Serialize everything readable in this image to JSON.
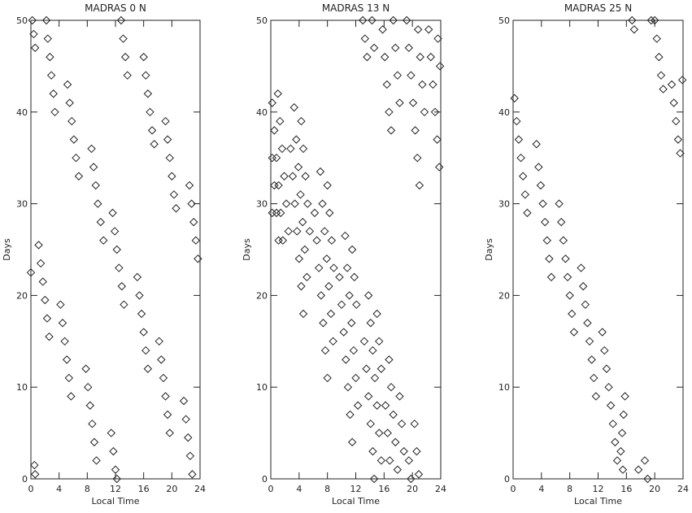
{
  "chart_data": [
    {
      "type": "scatter",
      "title": "MADRAS  0 N",
      "xlabel": "Local Time",
      "ylabel": "Days",
      "xlim": [
        0,
        24
      ],
      "xticks": [
        0,
        4,
        8,
        12,
        16,
        20,
        24
      ],
      "ylim": [
        0,
        50
      ],
      "yticks": [
        0,
        10,
        20,
        30,
        40,
        50
      ],
      "color": "#222222",
      "x": [
        0.2,
        0.4,
        0.6,
        2.2,
        2.4,
        2.7,
        2.9,
        3.2,
        3.4,
        5.2,
        5.5,
        5.8,
        6.1,
        6.4,
        6.8,
        8.6,
        8.9,
        9.2,
        9.5,
        9.9,
        10.3,
        11.6,
        11.9,
        12.2,
        12.5,
        12.9,
        13.2,
        15.1,
        15.4,
        15.7,
        16.0,
        16.3,
        16.6,
        18.2,
        18.5,
        18.8,
        19.1,
        19.4,
        19.7,
        21.7,
        22.0,
        22.3,
        22.6,
        22.9,
        12.8,
        13.1,
        13.4,
        13.7,
        16.0,
        16.3,
        16.6,
        16.9,
        17.2,
        17.5,
        19.1,
        19.4,
        19.7,
        20.0,
        20.3,
        20.6,
        22.5,
        22.8,
        23.1,
        23.4,
        23.7,
        1.1,
        1.4,
        1.7,
        2.0,
        2.3,
        2.6,
        4.2,
        4.5,
        4.8,
        5.1,
        5.4,
        5.7,
        7.8,
        8.1,
        8.4,
        8.7,
        9.0,
        9.3,
        11.4,
        11.7,
        12.0,
        12.2,
        0,
        0.5,
        0.6
      ],
      "values": [
        50,
        48.5,
        47,
        50,
        48,
        46,
        44,
        42,
        40,
        43,
        41,
        39,
        37,
        35,
        33,
        36,
        34,
        32,
        30,
        28,
        26,
        29,
        27,
        25,
        23,
        21,
        19,
        22,
        20,
        18,
        16,
        14,
        12,
        15,
        13,
        11,
        9,
        7,
        5,
        8.5,
        6.5,
        4.5,
        2.5,
        0.5,
        50,
        48,
        46,
        44,
        46,
        44,
        42,
        40,
        38,
        36.5,
        39,
        37,
        35,
        33,
        31,
        29.5,
        32,
        30,
        28,
        26,
        24,
        25.5,
        23.5,
        21.5,
        19.5,
        17.5,
        15.5,
        19,
        17,
        15,
        13,
        11,
        9,
        12,
        10,
        8,
        6,
        4,
        2,
        5,
        3,
        1,
        0,
        22.5,
        1.5,
        0.5
      ]
    },
    {
      "type": "scatter",
      "title": "MADRAS 13 N",
      "xlabel": "Local Time",
      "ylabel": "Days",
      "xlim": [
        0,
        24
      ],
      "xticks": [
        0,
        4,
        8,
        12,
        16,
        20,
        24
      ],
      "ylim": [
        0,
        50
      ],
      "yticks": [
        0,
        10,
        20,
        30,
        40,
        50
      ],
      "color": "#222222",
      "x": [
        0.2,
        0.5,
        0.8,
        1.1,
        1.4,
        1.7,
        1.0,
        1.3,
        1.6,
        1.9,
        2.2,
        2.5,
        0.2,
        0.5,
        0.8,
        1.1,
        0.2,
        3.3,
        3.6,
        3.9,
        4.2,
        4.5,
        4.8,
        5.1,
        2.8,
        3.1,
        3.4,
        3.7,
        4.0,
        4.3,
        4.6,
        4.3,
        4.6,
        4.9,
        5.2,
        5.5,
        7.0,
        7.3,
        7.6,
        7.9,
        8.2,
        8.5,
        8.8,
        6.2,
        6.5,
        6.8,
        7.1,
        7.4,
        7.7,
        8.0,
        8.0,
        8.3,
        8.6,
        8.9,
        10.5,
        10.8,
        11.1,
        11.4,
        11.7,
        12.0,
        12.3,
        9.7,
        10.0,
        10.3,
        10.6,
        10.9,
        11.2,
        11.5,
        11.5,
        11.8,
        12.1,
        13.8,
        14.1,
        14.4,
        14.7,
        15.0,
        15.3,
        15.6,
        13.2,
        13.5,
        13.8,
        14.1,
        14.4,
        14.6,
        15.0,
        15.3,
        15.6,
        16.7,
        17.0,
        17.3,
        17.6,
        17.9,
        16.2,
        16.5,
        16.8,
        18.2,
        18.5,
        18.8,
        20.3,
        20.6,
        20.9,
        19.5,
        19.8,
        13.0,
        13.3,
        13.6,
        14.3,
        14.6,
        15.8,
        16.1,
        16.4,
        16.7,
        17.0,
        17.3,
        17.6,
        17.9,
        18.2,
        19.2,
        19.5,
        19.8,
        20.1,
        20.4,
        20.7,
        21.0,
        20.8,
        21.1,
        21.4,
        21.7,
        22.3,
        22.6,
        22.9,
        23.2,
        23.5,
        23.8,
        23.6,
        23.9
      ],
      "values": [
        41,
        38,
        35,
        32,
        29,
        26,
        42,
        39,
        36,
        33,
        30,
        27,
        35,
        32,
        29,
        26,
        29,
        40.5,
        37,
        34,
        31,
        28,
        25,
        22,
        36,
        33,
        30,
        27,
        24,
        21,
        18,
        39,
        36,
        33,
        30,
        27,
        33.5,
        30,
        27,
        24,
        21,
        18,
        15,
        29,
        26,
        23,
        20,
        17,
        14,
        11,
        32,
        29,
        26,
        23,
        26.5,
        23,
        20,
        17,
        14,
        11,
        8,
        22,
        19,
        16,
        13,
        10,
        7,
        4,
        25,
        22,
        19,
        20,
        17,
        14,
        11,
        8,
        5,
        2,
        15,
        12,
        9,
        6,
        3,
        0,
        18,
        15,
        12,
        13,
        10,
        7,
        4,
        1,
        8,
        5,
        2,
        9,
        6,
        3,
        6,
        3,
        0.5,
        2,
        0,
        50,
        48,
        46,
        50,
        47,
        49,
        46,
        43,
        40,
        38,
        50,
        47,
        44,
        41,
        50,
        47,
        44,
        41,
        38,
        35,
        32,
        49,
        46,
        43,
        40,
        49,
        46,
        43,
        40,
        37,
        34,
        48,
        45
      ]
    },
    {
      "type": "scatter",
      "title": "MADRAS 25 N",
      "xlabel": "Local Time",
      "ylabel": "Days",
      "xlim": [
        0,
        24
      ],
      "xticks": [
        0,
        4,
        8,
        12,
        16,
        20,
        24
      ],
      "ylim": [
        0,
        50
      ],
      "yticks": [
        0,
        10,
        20,
        30,
        40,
        50
      ],
      "color": "#222222",
      "x": [
        0.2,
        0.5,
        0.8,
        1.1,
        1.4,
        1.7,
        2.0,
        3.3,
        3.6,
        3.9,
        4.2,
        4.5,
        4.8,
        5.1,
        5.4,
        6.5,
        6.8,
        7.1,
        7.4,
        7.7,
        8.0,
        8.3,
        8.6,
        9.6,
        9.9,
        10.2,
        10.5,
        10.8,
        11.1,
        11.4,
        11.7,
        12.6,
        12.9,
        13.2,
        13.5,
        13.8,
        14.1,
        14.4,
        14.7,
        15.8,
        15.6,
        15.4,
        15.2,
        15.5,
        18.6,
        19.0,
        17.7,
        16.8,
        17.1,
        20.0,
        20.3,
        20.6,
        20.9,
        21.2,
        19.5,
        22.4,
        22.7,
        23.0,
        23.3,
        23.6,
        23.9
      ],
      "values": [
        41.5,
        39,
        37,
        35,
        33,
        31,
        29,
        36.5,
        34,
        32,
        30,
        28,
        26,
        24,
        22,
        30,
        28,
        26,
        24,
        22,
        20,
        18,
        16,
        23,
        21,
        19,
        17,
        15,
        13,
        11,
        9,
        16,
        14,
        12,
        10,
        8,
        6,
        4,
        2,
        9,
        7,
        5,
        3,
        1,
        2,
        0,
        1,
        50,
        49,
        50,
        48,
        46,
        44,
        42.5,
        50,
        43,
        41,
        39,
        37,
        35.5,
        43.5
      ]
    }
  ]
}
